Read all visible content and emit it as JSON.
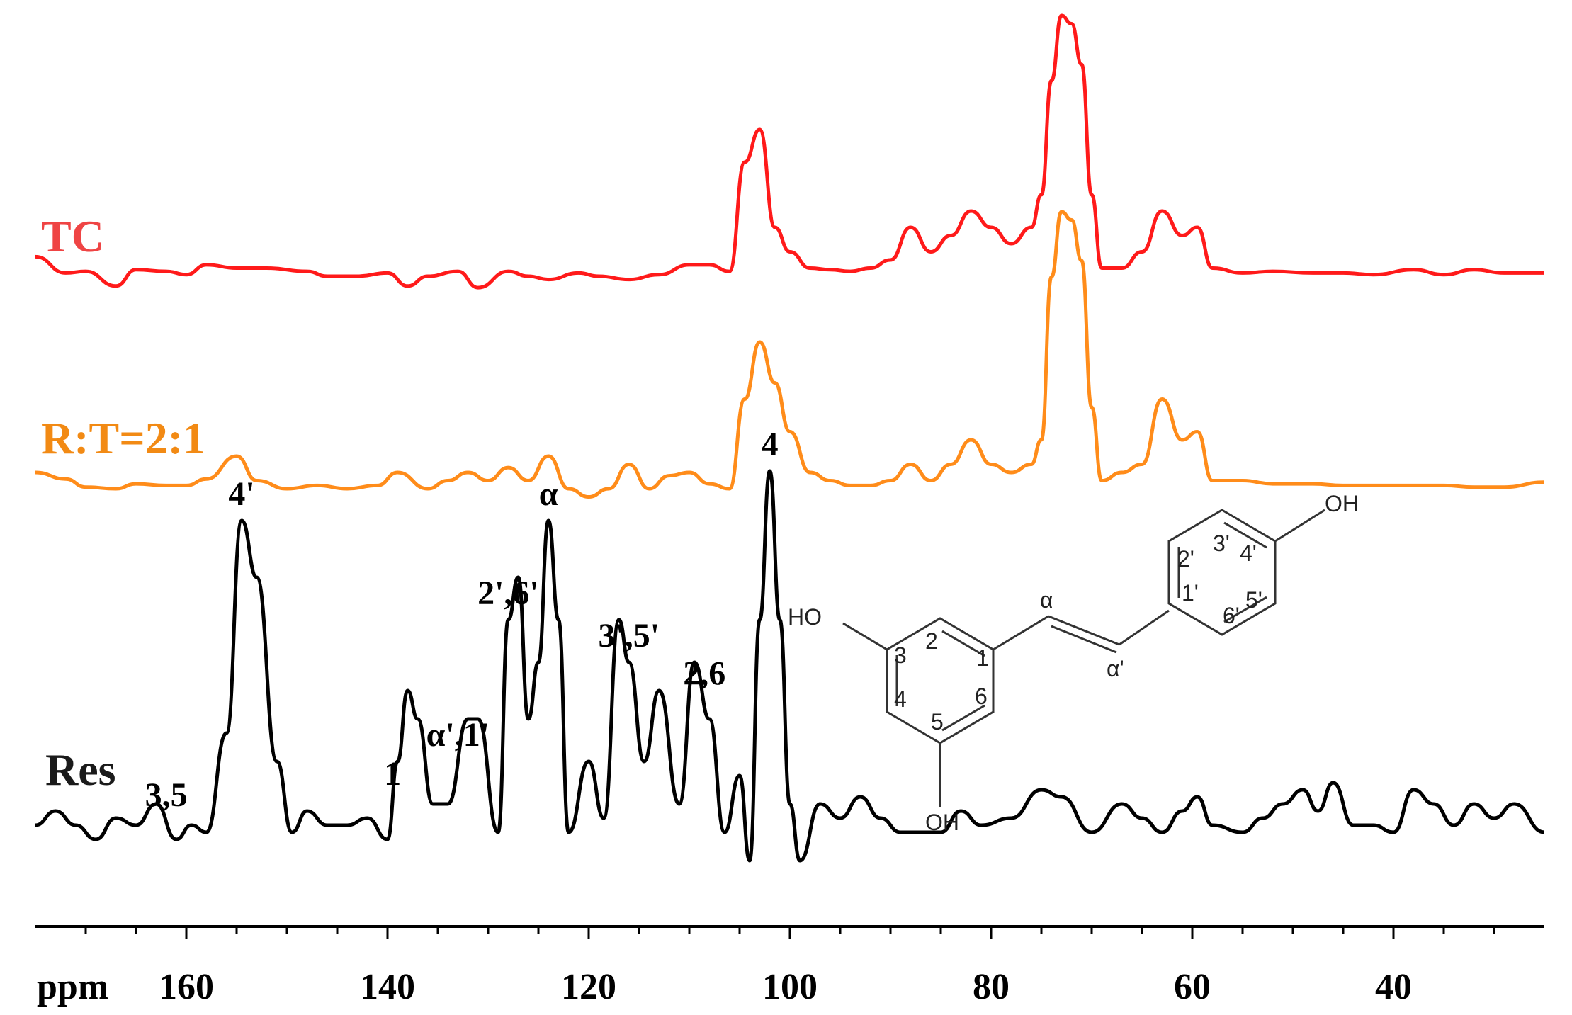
{
  "chart_data": {
    "type": "line",
    "x_unit_label": "ppm",
    "xlim": [
      175,
      25
    ],
    "x_direction": "reversed",
    "grid": false,
    "x_ticks": [
      160,
      140,
      120,
      100,
      80,
      60,
      40
    ],
    "x_tick_labels": [
      "160",
      "140",
      "120",
      "100",
      "80",
      "60",
      "40"
    ],
    "series": [
      {
        "name": "TC",
        "color": "#ff1a1a",
        "label_color": "#ef4444",
        "points": [
          [
            175,
            0.12
          ],
          [
            172,
            0.02
          ],
          [
            170,
            0.03
          ],
          [
            167,
            -0.06
          ],
          [
            165,
            0.04
          ],
          [
            162,
            0.03
          ],
          [
            160,
            0.01
          ],
          [
            158,
            0.07
          ],
          [
            155,
            0.05
          ],
          [
            152,
            0.05
          ],
          [
            148,
            0.03
          ],
          [
            146,
            0.0
          ],
          [
            143,
            0.0
          ],
          [
            140,
            0.02
          ],
          [
            138,
            -0.06
          ],
          [
            136,
            0.0
          ],
          [
            133,
            0.03
          ],
          [
            131,
            -0.07
          ],
          [
            128,
            0.03
          ],
          [
            126,
            0.0
          ],
          [
            124,
            -0.02
          ],
          [
            121,
            0.02
          ],
          [
            119,
            0.0
          ],
          [
            116,
            -0.02
          ],
          [
            113,
            0.01
          ],
          [
            110,
            0.07
          ],
          [
            108,
            0.07
          ],
          [
            106,
            0.03
          ],
          [
            104.5,
            0.7
          ],
          [
            103,
            0.9
          ],
          [
            101.5,
            0.3
          ],
          [
            100,
            0.15
          ],
          [
            98,
            0.05
          ],
          [
            96,
            0.04
          ],
          [
            94,
            0.03
          ],
          [
            92,
            0.05
          ],
          [
            90,
            0.1
          ],
          [
            88,
            0.3
          ],
          [
            86,
            0.15
          ],
          [
            84,
            0.25
          ],
          [
            82,
            0.4
          ],
          [
            80,
            0.3
          ],
          [
            78,
            0.2
          ],
          [
            76,
            0.3
          ],
          [
            75,
            0.5
          ],
          [
            74,
            1.2
          ],
          [
            73,
            1.6
          ],
          [
            72,
            1.55
          ],
          [
            71,
            1.3
          ],
          [
            70,
            0.5
          ],
          [
            69,
            0.05
          ],
          [
            67,
            0.05
          ],
          [
            65,
            0.15
          ],
          [
            63,
            0.4
          ],
          [
            61,
            0.25
          ],
          [
            59.5,
            0.3
          ],
          [
            58,
            0.05
          ],
          [
            55,
            0.02
          ],
          [
            52,
            0.03
          ],
          [
            48,
            0.02
          ],
          [
            45,
            0.02
          ],
          [
            42,
            0.01
          ],
          [
            38,
            0.04
          ],
          [
            35,
            0.01
          ],
          [
            32,
            0.04
          ],
          [
            29,
            0.02
          ],
          [
            25,
            0.02
          ]
        ]
      },
      {
        "name": "R:T=2:1",
        "color": "#ff8c1a",
        "label_color": "#f28a14",
        "points": [
          [
            175,
            0.1
          ],
          [
            172,
            0.06
          ],
          [
            170,
            0.01
          ],
          [
            167,
            0.0
          ],
          [
            165,
            0.03
          ],
          [
            162,
            0.02
          ],
          [
            160,
            0.02
          ],
          [
            158,
            0.06
          ],
          [
            155,
            0.2
          ],
          [
            153,
            0.05
          ],
          [
            150,
            0.0
          ],
          [
            147,
            0.02
          ],
          [
            144,
            0.0
          ],
          [
            141,
            0.02
          ],
          [
            139,
            0.1
          ],
          [
            136,
            0.0
          ],
          [
            134,
            0.05
          ],
          [
            132,
            0.1
          ],
          [
            130,
            0.05
          ],
          [
            128,
            0.13
          ],
          [
            126,
            0.05
          ],
          [
            124,
            0.2
          ],
          [
            122,
            0.0
          ],
          [
            120,
            -0.05
          ],
          [
            118,
            0.0
          ],
          [
            116,
            0.15
          ],
          [
            114,
            0.0
          ],
          [
            112,
            0.08
          ],
          [
            110,
            0.1
          ],
          [
            108,
            0.03
          ],
          [
            106,
            0.0
          ],
          [
            104.5,
            0.55
          ],
          [
            103,
            0.9
          ],
          [
            101.5,
            0.65
          ],
          [
            100,
            0.35
          ],
          [
            98,
            0.1
          ],
          [
            96,
            0.05
          ],
          [
            94,
            0.02
          ],
          [
            92,
            0.02
          ],
          [
            90,
            0.05
          ],
          [
            88,
            0.15
          ],
          [
            86,
            0.05
          ],
          [
            84,
            0.15
          ],
          [
            82,
            0.3
          ],
          [
            80,
            0.15
          ],
          [
            78,
            0.1
          ],
          [
            76,
            0.15
          ],
          [
            75,
            0.3
          ],
          [
            74,
            1.3
          ],
          [
            73,
            1.7
          ],
          [
            72,
            1.65
          ],
          [
            71,
            1.4
          ],
          [
            70,
            0.5
          ],
          [
            69,
            0.05
          ],
          [
            67,
            0.1
          ],
          [
            65,
            0.15
          ],
          [
            63,
            0.55
          ],
          [
            61,
            0.3
          ],
          [
            59.5,
            0.35
          ],
          [
            58,
            0.05
          ],
          [
            55,
            0.05
          ],
          [
            52,
            0.03
          ],
          [
            48,
            0.03
          ],
          [
            45,
            0.02
          ],
          [
            42,
            0.02
          ],
          [
            38,
            0.02
          ],
          [
            35,
            0.02
          ],
          [
            32,
            0.01
          ],
          [
            29,
            0.01
          ],
          [
            25,
            0.04
          ]
        ]
      },
      {
        "name": "Res",
        "color": "#000000",
        "label_color": "#1a1a1a",
        "points": [
          [
            175,
            0.05
          ],
          [
            173,
            0.15
          ],
          [
            171,
            0.05
          ],
          [
            169,
            -0.05
          ],
          [
            167,
            0.1
          ],
          [
            165,
            0.05
          ],
          [
            163,
            0.2
          ],
          [
            161,
            -0.05
          ],
          [
            159.5,
            0.05
          ],
          [
            158,
            0.0
          ],
          [
            156,
            0.7
          ],
          [
            154.5,
            2.2
          ],
          [
            153,
            1.8
          ],
          [
            151,
            0.5
          ],
          [
            149.5,
            0.0
          ],
          [
            148,
            0.15
          ],
          [
            146,
            0.05
          ],
          [
            144,
            0.05
          ],
          [
            142,
            0.1
          ],
          [
            140,
            -0.05
          ],
          [
            139,
            0.5
          ],
          [
            138,
            1.0
          ],
          [
            137,
            0.8
          ],
          [
            135.5,
            0.2
          ],
          [
            134,
            0.2
          ],
          [
            132,
            0.8
          ],
          [
            131,
            0.8
          ],
          [
            129,
            0.0
          ],
          [
            128,
            1.5
          ],
          [
            127,
            1.8
          ],
          [
            126,
            0.8
          ],
          [
            125,
            1.2
          ],
          [
            124,
            2.2
          ],
          [
            123,
            1.5
          ],
          [
            122,
            0.0
          ],
          [
            120,
            0.5
          ],
          [
            118.5,
            0.1
          ],
          [
            117,
            1.5
          ],
          [
            116,
            1.2
          ],
          [
            114.5,
            0.5
          ],
          [
            113,
            1.0
          ],
          [
            111,
            0.2
          ],
          [
            109.5,
            1.2
          ],
          [
            108,
            0.8
          ],
          [
            106.5,
            0.0
          ],
          [
            105,
            0.4
          ],
          [
            104,
            -0.2
          ],
          [
            103,
            1.5
          ],
          [
            102,
            2.55
          ],
          [
            101,
            1.5
          ],
          [
            100,
            0.2
          ],
          [
            99,
            -0.2
          ],
          [
            97,
            0.2
          ],
          [
            95,
            0.1
          ],
          [
            93,
            0.25
          ],
          [
            91,
            0.1
          ],
          [
            89,
            0.0
          ],
          [
            87,
            0.0
          ],
          [
            85,
            0.0
          ],
          [
            83,
            0.15
          ],
          [
            81,
            0.05
          ],
          [
            78,
            0.1
          ],
          [
            75,
            0.3
          ],
          [
            73,
            0.25
          ],
          [
            70,
            0.0
          ],
          [
            67,
            0.2
          ],
          [
            65,
            0.1
          ],
          [
            63,
            0.0
          ],
          [
            61,
            0.15
          ],
          [
            59.5,
            0.25
          ],
          [
            58,
            0.05
          ],
          [
            55,
            0.0
          ],
          [
            53,
            0.1
          ],
          [
            51,
            0.2
          ],
          [
            49,
            0.3
          ],
          [
            47.5,
            0.15
          ],
          [
            46,
            0.35
          ],
          [
            44,
            0.05
          ],
          [
            42,
            0.05
          ],
          [
            40,
            0.0
          ],
          [
            38,
            0.3
          ],
          [
            36,
            0.2
          ],
          [
            34,
            0.05
          ],
          [
            32,
            0.2
          ],
          [
            30,
            0.1
          ],
          [
            28,
            0.2
          ],
          [
            25,
            0.0
          ]
        ]
      }
    ],
    "series_labels": [
      "TC",
      "R:T=2:1",
      "Res"
    ],
    "peak_labels": [
      {
        "text": "4'",
        "x": 154.5,
        "series": "Res"
      },
      {
        "text": "3,5",
        "x": 162,
        "series": "Res"
      },
      {
        "text": "1",
        "x": 139.5,
        "series": "Res"
      },
      {
        "text": "α',1'",
        "x": 133,
        "series": "Res"
      },
      {
        "text": "2',6'",
        "x": 128,
        "series": "Res"
      },
      {
        "text": "α",
        "x": 124,
        "series": "Res"
      },
      {
        "text": "3',5'",
        "x": 116,
        "series": "Res"
      },
      {
        "text": "2,6",
        "x": 108.5,
        "series": "Res"
      },
      {
        "text": "4",
        "x": 102,
        "series": "Res"
      }
    ]
  },
  "molecule": {
    "oh_top": "OH",
    "oh_left": "HO",
    "oh_bottom": "OH",
    "alpha": "α",
    "alpha_prime": "α'",
    "numbers_left_ring": [
      "3",
      "2",
      "1",
      "4",
      "5",
      "6"
    ],
    "numbers_right_ring": [
      "2'",
      "3'",
      "4'",
      "1'",
      "6'",
      "5'"
    ]
  }
}
